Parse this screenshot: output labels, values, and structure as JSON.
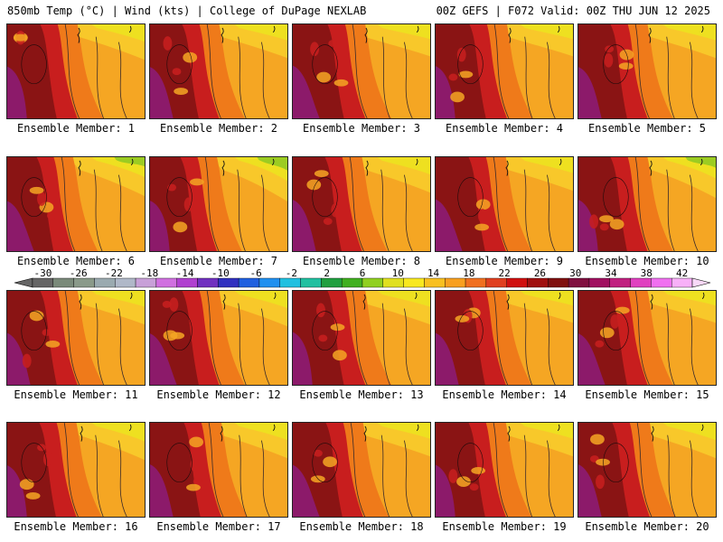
{
  "header": {
    "left": "850mb Temp (°C) | Wind (kts) | College of DuPage NEXLAB",
    "right": "00Z GEFS | F072 Valid: 00Z THU JUN 12 2025"
  },
  "caption_prefix": "Ensemble Member:",
  "members": [
    {
      "label": "Ensemble Member: 1",
      "heat": 0.75,
      "cool": 0.25
    },
    {
      "label": "Ensemble Member: 2",
      "heat": 0.7,
      "cool": 0.2
    },
    {
      "label": "Ensemble Member: 3",
      "heat": 0.85,
      "cool": 0.15
    },
    {
      "label": "Ensemble Member: 4",
      "heat": 0.8,
      "cool": 0.15
    },
    {
      "label": "Ensemble Member: 5",
      "heat": 0.7,
      "cool": 0.2
    },
    {
      "label": "Ensemble Member: 6",
      "heat": 0.55,
      "cool": 0.35
    },
    {
      "label": "Ensemble Member: 7",
      "heat": 0.6,
      "cool": 0.5
    },
    {
      "label": "Ensemble Member: 8",
      "heat": 0.7,
      "cool": 0.25
    },
    {
      "label": "Ensemble Member: 9",
      "heat": 0.75,
      "cool": 0.2
    },
    {
      "label": "Ensemble Member: 10",
      "heat": 0.7,
      "cool": 0.4
    },
    {
      "label": "Ensemble Member: 11",
      "heat": 0.75,
      "cool": 0.2
    },
    {
      "label": "Ensemble Member: 12",
      "heat": 0.7,
      "cool": 0.25
    },
    {
      "label": "Ensemble Member: 13",
      "heat": 0.85,
      "cool": 0.2
    },
    {
      "label": "Ensemble Member: 14",
      "heat": 0.75,
      "cool": 0.15
    },
    {
      "label": "Ensemble Member: 15",
      "heat": 0.7,
      "cool": 0.15
    },
    {
      "label": "Ensemble Member: 16",
      "heat": 0.7,
      "cool": 0.3
    },
    {
      "label": "Ensemble Member: 17",
      "heat": 0.8,
      "cool": 0.25
    },
    {
      "label": "Ensemble Member: 18",
      "heat": 0.75,
      "cool": 0.2
    },
    {
      "label": "Ensemble Member: 19",
      "heat": 0.75,
      "cool": 0.2
    },
    {
      "label": "Ensemble Member: 20",
      "heat": 0.8,
      "cool": 0.25
    }
  ],
  "colorbar": {
    "labels": [
      "-30",
      "-26",
      "-22",
      "-18",
      "-14",
      "-10",
      "-6",
      "-2",
      "2",
      "6",
      "10",
      "14",
      "18",
      "22",
      "26",
      "30",
      "34",
      "38",
      "42"
    ],
    "colors": [
      "#666666",
      "#7a8a7a",
      "#8a9a8a",
      "#9aaab0",
      "#b0b8c8",
      "#c8a0d8",
      "#d070e0",
      "#b040d0",
      "#7030c0",
      "#3030c0",
      "#2060e0",
      "#2090f0",
      "#20c0e0",
      "#20c0a0",
      "#20a040",
      "#40b020",
      "#90d020",
      "#e0e020",
      "#f8e820",
      "#f8c020",
      "#f8a020",
      "#f07020",
      "#e04020",
      "#d01010",
      "#a01010",
      "#801010",
      "#801040",
      "#a01060",
      "#c02080",
      "#e040c0",
      "#f070f0",
      "#f8b0f8"
    ]
  },
  "palette": {
    "magenta": "#8c1a6a",
    "darkred": "#8a1414",
    "red": "#c81e1e",
    "orange": "#ef7a1a",
    "amber": "#f5a623",
    "gold": "#f8c82a",
    "yellow": "#eee020",
    "green": "#9ccc22"
  }
}
